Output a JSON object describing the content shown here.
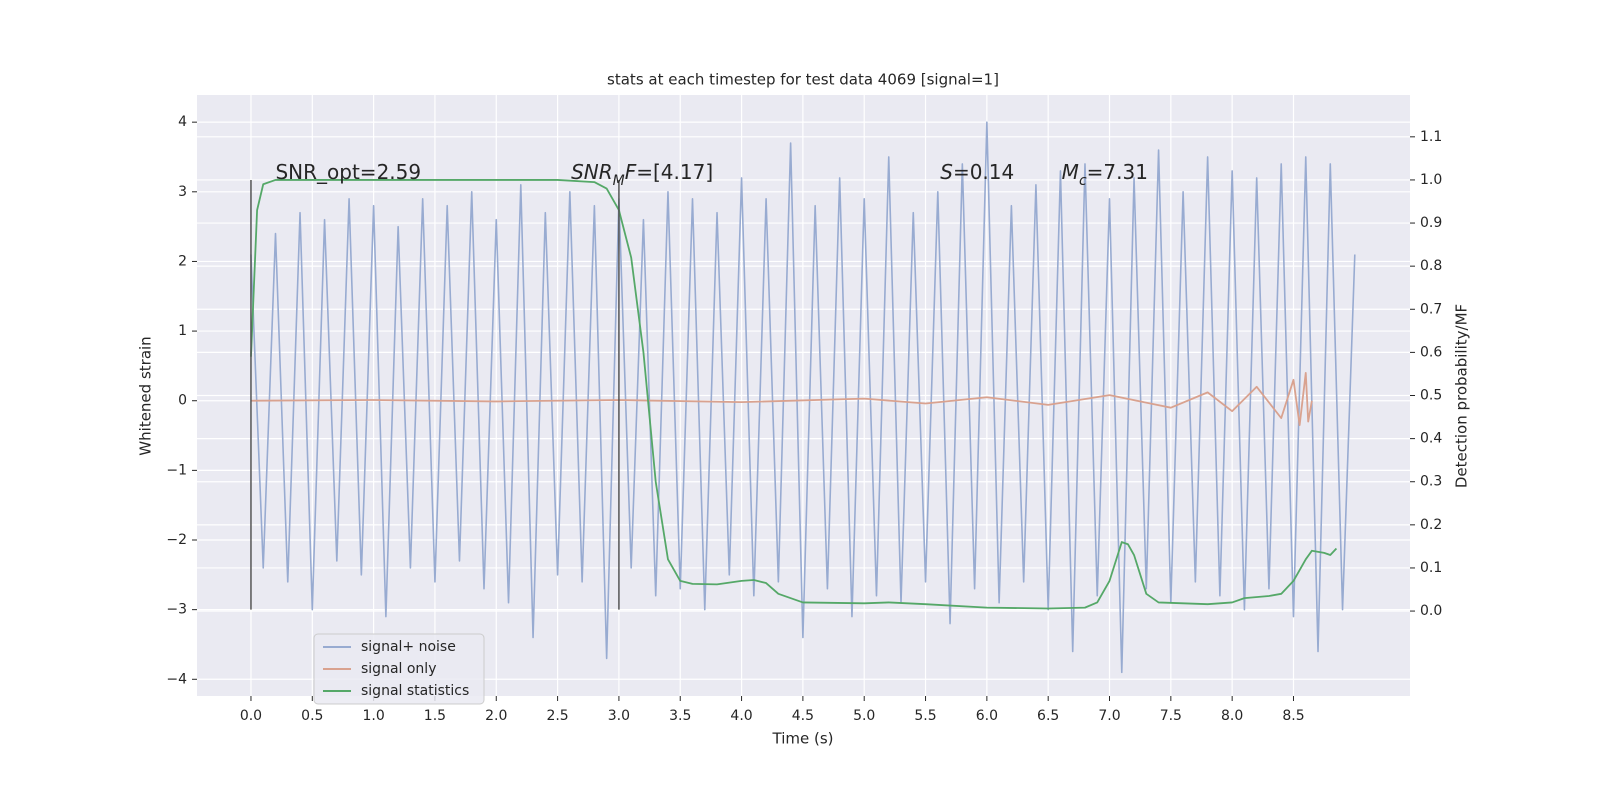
{
  "chart_data": {
    "type": "line",
    "title": "stats at each timestep for test data 4069 [signal=1]",
    "xlabel": "Time (s)",
    "ylabel": "Whitened strain",
    "y2label": "Detection probability/MF",
    "xlim": [
      -0.44,
      9.45
    ],
    "ylim": [
      -4.24,
      4.39
    ],
    "y2lim": [
      -0.197,
      1.197
    ],
    "xticks": [
      {
        "value": 0,
        "label": "0.0"
      },
      0.5,
      {
        "value": 1,
        "label": "1.0"
      },
      1.5,
      {
        "value": 2,
        "label": "2.0"
      },
      2.5,
      {
        "value": 3,
        "label": "3.0"
      },
      3.5,
      {
        "value": 4,
        "label": "4.0"
      },
      4.5,
      {
        "value": 5,
        "label": "5.0"
      },
      5.5,
      {
        "value": 6,
        "label": "6.0"
      },
      6.5,
      {
        "value": 7,
        "label": "7.0"
      },
      7.5,
      {
        "value": 8,
        "label": "8.0"
      },
      8.5
    ],
    "yticks": [
      {
        "value": -4,
        "label": "−4"
      },
      {
        "value": -3,
        "label": "−3"
      },
      {
        "value": -2,
        "label": "−2"
      },
      {
        "value": -1,
        "label": "−1"
      },
      0,
      1,
      2,
      3,
      4
    ],
    "y2ticks": [
      {
        "value": 0,
        "label": "0.0"
      },
      0.1,
      0.2,
      0.3,
      0.4,
      0.5,
      0.6,
      0.7,
      0.8,
      0.9,
      {
        "value": 1,
        "label": "1.0"
      },
      1.1
    ],
    "grid": true,
    "legend": "lower left",
    "series": [
      {
        "name": "signal+ noise",
        "color": "#98abd1",
        "x": [
          0.0,
          0.1,
          0.2,
          0.3,
          0.4,
          0.5,
          0.6,
          0.7,
          0.8,
          0.9,
          1.0,
          1.1,
          1.2,
          1.3,
          1.4,
          1.5,
          1.6,
          1.7,
          1.8,
          1.9,
          2.0,
          2.1,
          2.2,
          2.3,
          2.4,
          2.5,
          2.6,
          2.7,
          2.8,
          2.9,
          3.0,
          3.1,
          3.2,
          3.3,
          3.4,
          3.5,
          3.6,
          3.7,
          3.8,
          3.9,
          4.0,
          4.1,
          4.2,
          4.3,
          4.4,
          4.5,
          4.6,
          4.7,
          4.8,
          4.9,
          5.0,
          5.1,
          5.2,
          5.3,
          5.4,
          5.5,
          5.6,
          5.7,
          5.8,
          5.9,
          6.0,
          6.1,
          6.2,
          6.3,
          6.4,
          6.5,
          6.6,
          6.7,
          6.8,
          6.9,
          7.0,
          7.1,
          7.2,
          7.3,
          7.4,
          7.5,
          7.6,
          7.7,
          7.8,
          7.9,
          8.0,
          8.1,
          8.2,
          8.3,
          8.4,
          8.5,
          8.6,
          8.7,
          8.8,
          8.9,
          9.0
        ],
        "values": [
          2.1,
          -2.4,
          2.4,
          -2.6,
          2.7,
          -3.0,
          2.6,
          -2.3,
          2.9,
          -2.5,
          2.8,
          -3.1,
          2.5,
          -2.4,
          2.9,
          -2.6,
          2.8,
          -2.3,
          3.0,
          -2.7,
          2.6,
          -2.9,
          3.1,
          -3.4,
          2.7,
          -2.5,
          3.0,
          -2.6,
          2.8,
          -3.7,
          2.9,
          -2.4,
          2.6,
          -2.8,
          3.0,
          -2.7,
          2.9,
          -3.0,
          2.7,
          -2.5,
          3.2,
          -2.8,
          2.9,
          -2.6,
          3.7,
          -3.4,
          2.8,
          -2.7,
          3.2,
          -3.1,
          2.9,
          -2.8,
          3.5,
          -2.9,
          2.7,
          -2.6,
          3.0,
          -3.2,
          3.4,
          -2.7,
          4.0,
          -2.9,
          2.8,
          -2.6,
          3.1,
          -3.0,
          3.3,
          -3.6,
          3.4,
          -2.8,
          2.9,
          -3.9,
          3.2,
          -2.7,
          3.6,
          -2.9,
          3.0,
          -2.6,
          3.5,
          -2.8,
          3.3,
          -3.0,
          3.2,
          -2.7,
          3.4,
          -3.1,
          3.5,
          -3.6,
          3.4,
          -3.0,
          2.1
        ]
      },
      {
        "name": "signal only",
        "color": "#d9a28f",
        "x": [
          0,
          1,
          2,
          3,
          4,
          5,
          5.5,
          6,
          6.5,
          7,
          7.5,
          7.8,
          8.0,
          8.2,
          8.4,
          8.5,
          8.55,
          8.6,
          8.62,
          8.65
        ],
        "values": [
          0,
          0.01,
          -0.01,
          0.01,
          -0.02,
          0.03,
          -0.04,
          0.05,
          -0.06,
          0.08,
          -0.1,
          0.12,
          -0.15,
          0.2,
          -0.25,
          0.3,
          -0.35,
          0.4,
          -0.3,
          0
        ]
      },
      {
        "name": "signal statistics",
        "color": "#55a868",
        "axis": "y2",
        "x": [
          0.0,
          0.05,
          0.1,
          0.2,
          0.5,
          1.0,
          2.0,
          2.5,
          2.8,
          2.9,
          3.0,
          3.1,
          3.2,
          3.3,
          3.4,
          3.5,
          3.6,
          3.8,
          4.0,
          4.1,
          4.2,
          4.3,
          4.5,
          5.0,
          5.2,
          5.5,
          6.0,
          6.5,
          6.8,
          6.9,
          7.0,
          7.1,
          7.15,
          7.2,
          7.3,
          7.4,
          7.6,
          7.8,
          8.0,
          8.1,
          8.3,
          8.4,
          8.5,
          8.6,
          8.65,
          8.75,
          8.8,
          8.85
        ],
        "values": [
          0.59,
          0.93,
          0.99,
          1.0,
          1.0,
          1.0,
          1.0,
          1.0,
          0.995,
          0.98,
          0.93,
          0.82,
          0.6,
          0.3,
          0.12,
          0.07,
          0.063,
          0.062,
          0.07,
          0.072,
          0.065,
          0.04,
          0.02,
          0.018,
          0.02,
          0.016,
          0.008,
          0.006,
          0.008,
          0.02,
          0.07,
          0.16,
          0.155,
          0.13,
          0.04,
          0.02,
          0.018,
          0.016,
          0.02,
          0.03,
          0.035,
          0.04,
          0.07,
          0.12,
          0.14,
          0.135,
          0.13,
          0.145
        ]
      }
    ],
    "vlines": {
      "x": [
        0,
        3.0
      ],
      "ymin": -3,
      "ymax": 3.17
    },
    "annotations": [
      {
        "x": 0.2,
        "y": 3.27,
        "parts": [
          {
            "text": "SNR_opt=2.59"
          }
        ]
      },
      {
        "x": 2.61,
        "y": 3.27,
        "parts": [
          {
            "text": "SNR",
            "style": "italic"
          },
          {
            "text": "M",
            "style": "sub"
          },
          {
            "text": "F",
            "style": "italic"
          },
          {
            "text": "=[4.17]"
          }
        ]
      },
      {
        "x": 5.62,
        "y": 3.27,
        "parts": [
          {
            "text": "S",
            "style": "italic"
          },
          {
            "text": "=0.14"
          }
        ]
      },
      {
        "x": 6.61,
        "y": 3.27,
        "parts": [
          {
            "text": "M",
            "style": "italic"
          },
          {
            "text": "c",
            "style": "sub"
          },
          {
            "text": "=7.31"
          }
        ]
      }
    ]
  }
}
